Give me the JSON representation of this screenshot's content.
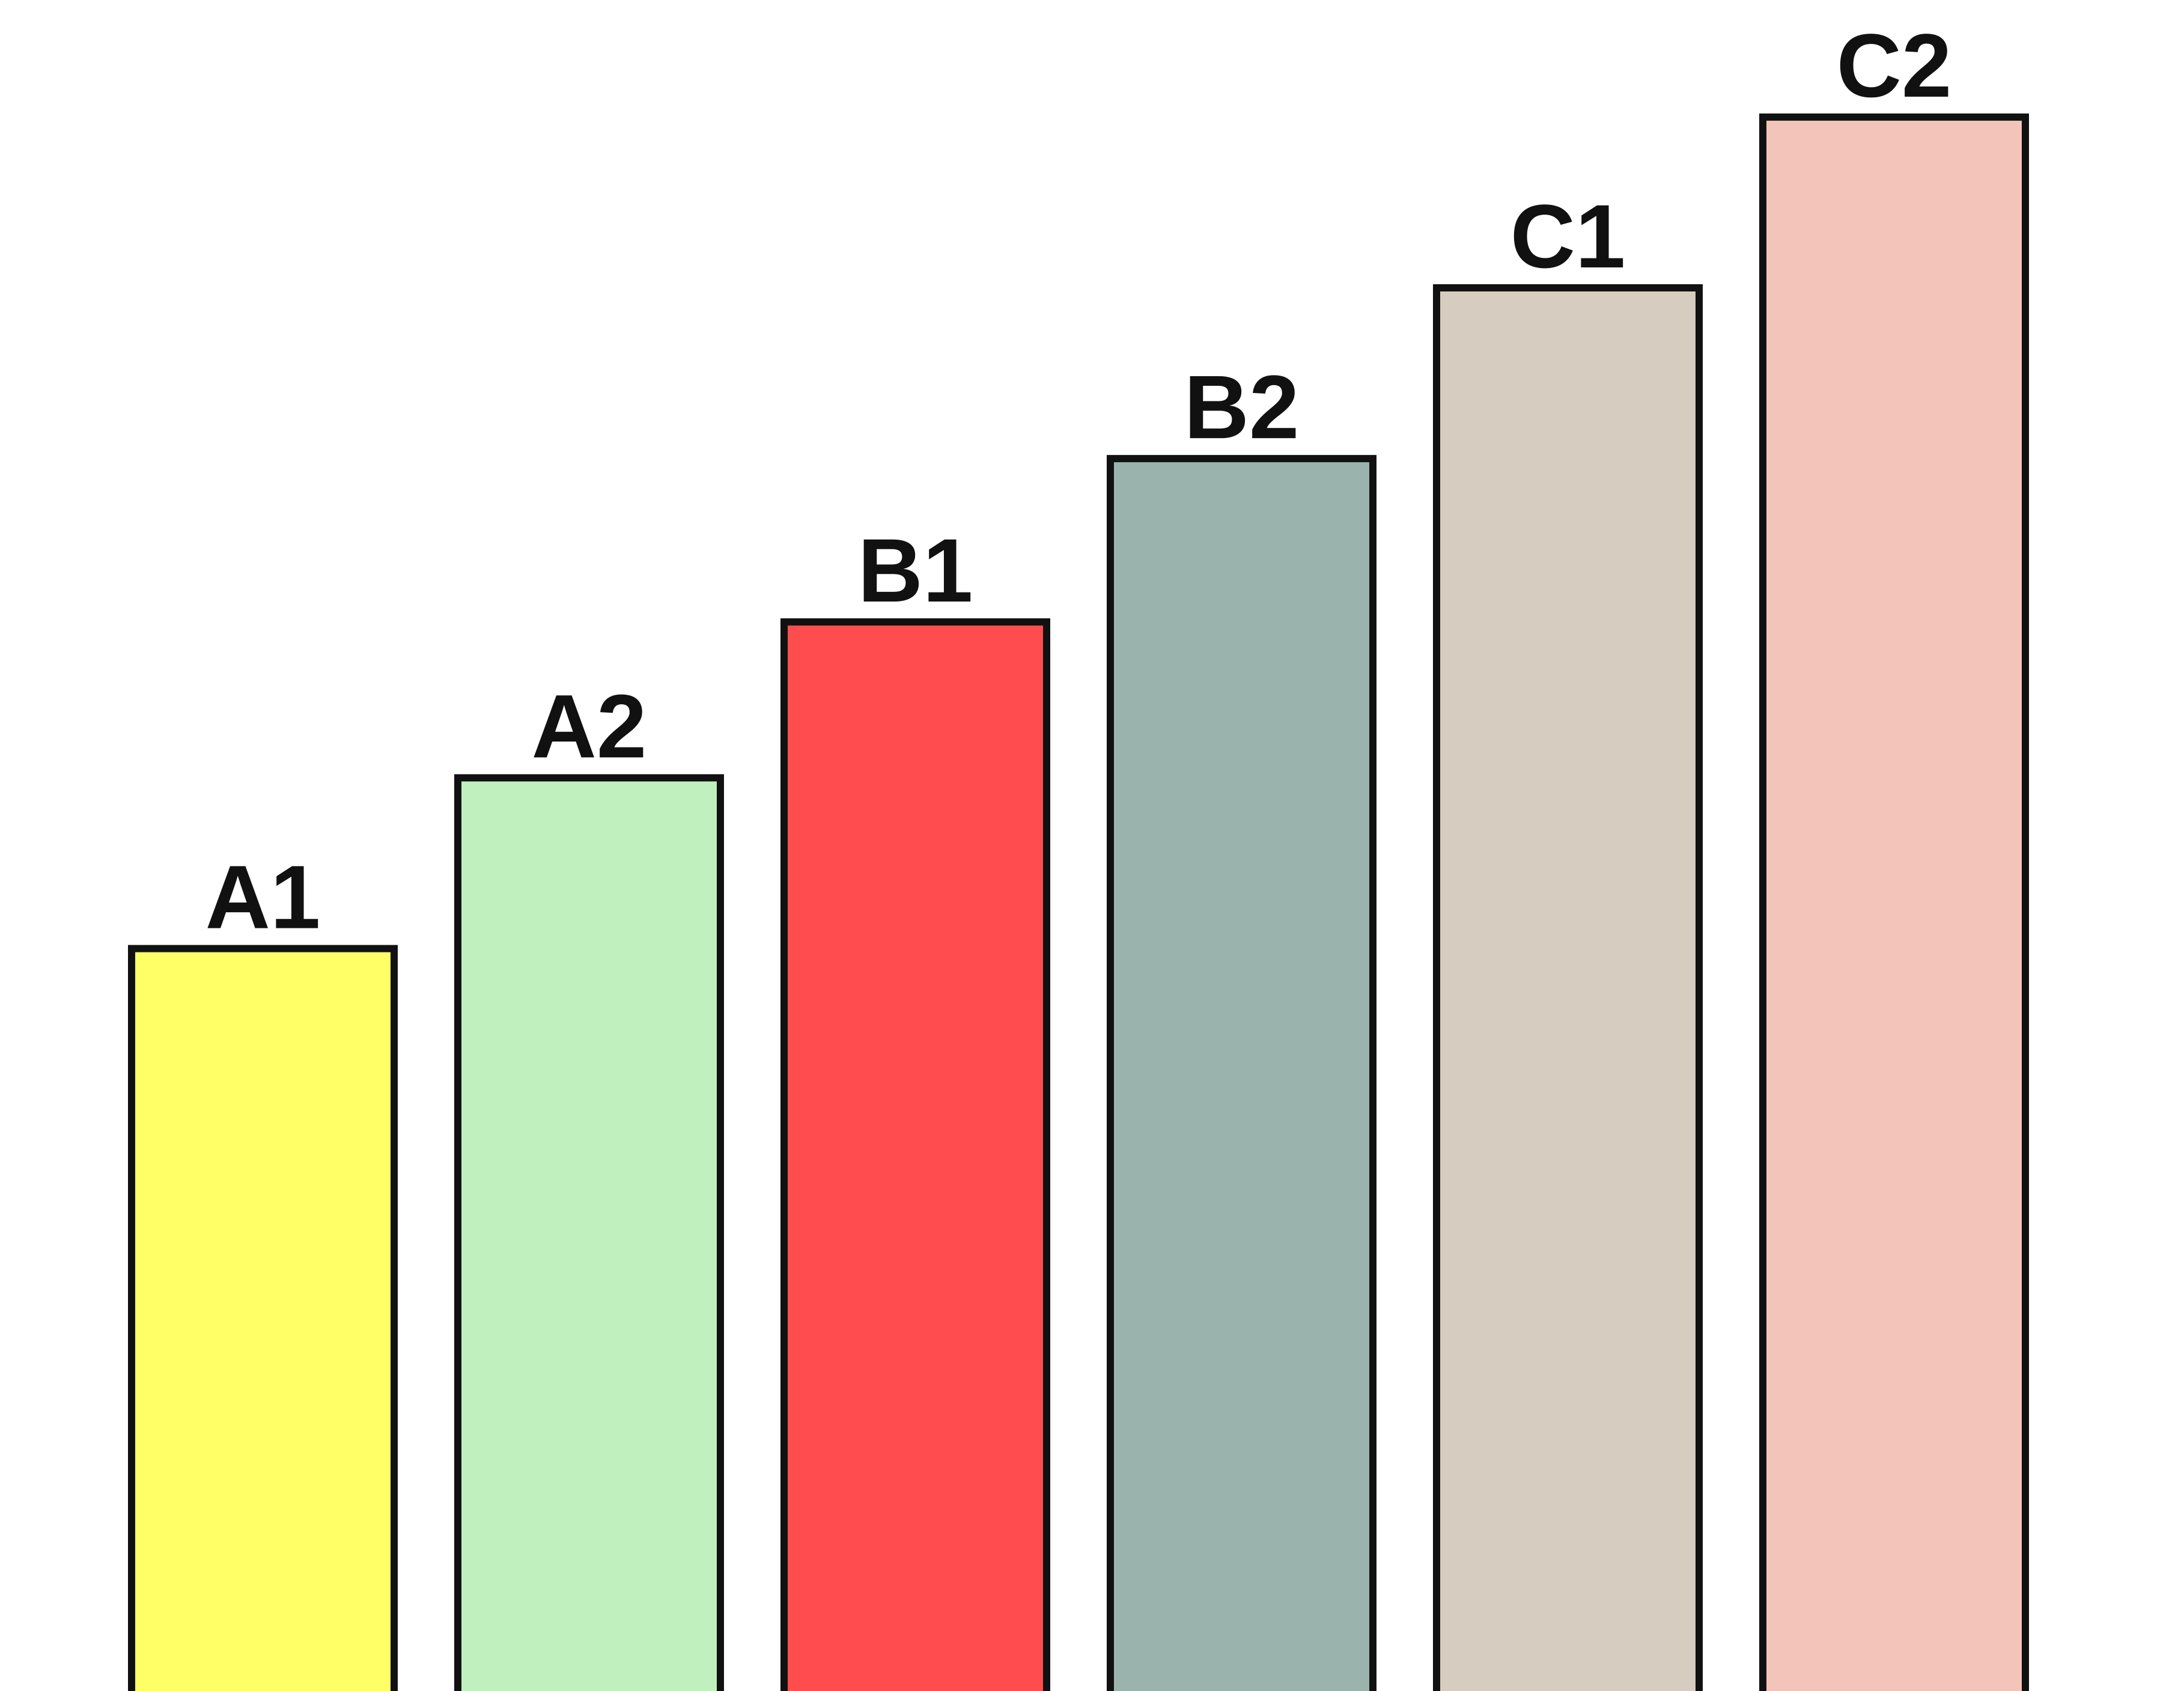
{
  "chart_data": {
    "type": "bar",
    "title": "",
    "xlabel": "",
    "ylabel": "",
    "categories": [
      "A1",
      "A2",
      "B1",
      "B2",
      "C1",
      "C2"
    ],
    "values": [
      1.0,
      1.23,
      1.44,
      1.66,
      1.89,
      2.12
    ],
    "ylim": [
      0,
      2.2
    ],
    "grid": false,
    "legend": "none",
    "colors": [
      "#FFFF66",
      "#C0F0BE",
      "#FF4D4F",
      "#9AB3AD",
      "#D6CCC0",
      "#F2C4BA"
    ],
    "edge_color": "#111111",
    "label_position": "above-bar"
  }
}
